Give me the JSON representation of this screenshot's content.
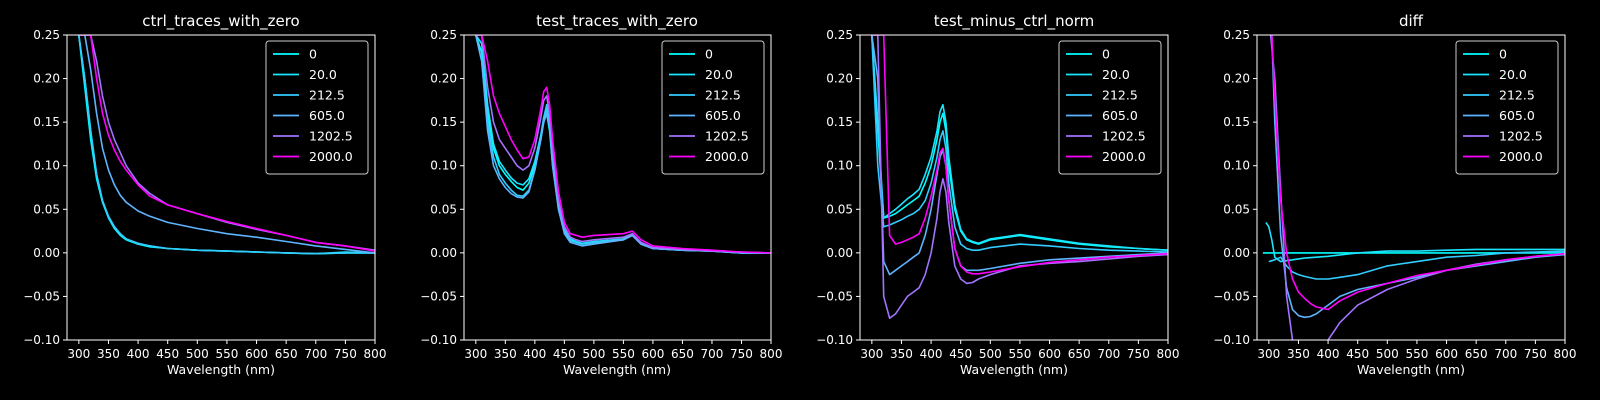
{
  "figure": {
    "background": "#000000",
    "foreground": "#ffffff"
  },
  "legend_labels": [
    "0",
    "20.0",
    "212.5",
    "605.0",
    "1202.5",
    "2000.0"
  ],
  "series_colors": [
    "#00ffff",
    "#1ae5ff",
    "#33ccff",
    "#5eb4ff",
    "#a173ff",
    "#ff00ff"
  ],
  "chart_data": [
    {
      "type": "line",
      "title": "ctrl_traces_with_zero",
      "xlabel": "Wavelength (nm)",
      "ylabel": "",
      "xlim": [
        280,
        800
      ],
      "ylim": [
        -0.1,
        0.25
      ],
      "xticks": [
        300,
        350,
        400,
        450,
        500,
        550,
        600,
        650,
        700,
        750,
        800
      ],
      "yticks": [
        -0.1,
        -0.05,
        0.0,
        0.05,
        0.1,
        0.15,
        0.2,
        0.25
      ],
      "ytick_labels": [
        "−0.10",
        "−0.05",
        "0.00",
        "0.05",
        "0.10",
        "0.15",
        "0.20",
        "0.25"
      ],
      "legend_position": "top-right",
      "x": [
        300,
        310,
        320,
        330,
        340,
        350,
        360,
        370,
        380,
        400,
        420,
        450,
        500,
        550,
        600,
        650,
        700,
        750,
        800
      ],
      "series": [
        {
          "name": "0",
          "values": [
            0.25,
            0.19,
            0.13,
            0.085,
            0.058,
            0.04,
            0.028,
            0.02,
            0.015,
            0.01,
            0.007,
            0.005,
            0.003,
            0.002,
            0.001,
            0.0,
            -0.001,
            0.0,
            0.0
          ]
        },
        {
          "name": "20.0",
          "values": [
            0.25,
            0.2,
            0.14,
            0.09,
            0.06,
            0.041,
            0.029,
            0.021,
            0.016,
            0.01,
            0.008,
            0.005,
            0.003,
            0.002,
            0.001,
            0.0,
            -0.001,
            0.001,
            0.0
          ]
        },
        {
          "name": "212.5",
          "values": [
            0.25,
            0.2,
            0.14,
            0.09,
            0.06,
            0.042,
            0.03,
            0.022,
            0.016,
            0.011,
            0.008,
            0.005,
            0.003,
            0.002,
            0.001,
            0.0,
            -0.001,
            0.0,
            0.0
          ]
        },
        {
          "name": "605.0",
          "values": [
            0.25,
            0.25,
            0.21,
            0.16,
            0.12,
            0.095,
            0.078,
            0.066,
            0.058,
            0.048,
            0.042,
            0.035,
            0.028,
            0.022,
            0.018,
            0.013,
            0.008,
            0.004,
            0.0
          ]
        },
        {
          "name": "1202.5",
          "values": [
            0.25,
            0.25,
            0.25,
            0.22,
            0.18,
            0.15,
            0.13,
            0.115,
            0.1,
            0.08,
            0.068,
            0.055,
            0.045,
            0.035,
            0.027,
            0.02,
            0.012,
            0.008,
            0.003
          ]
        },
        {
          "name": "2000.0",
          "values": [
            0.25,
            0.25,
            0.25,
            0.2,
            0.16,
            0.135,
            0.118,
            0.105,
            0.095,
            0.078,
            0.065,
            0.055,
            0.045,
            0.036,
            0.028,
            0.02,
            0.012,
            0.008,
            0.002
          ]
        }
      ]
    },
    {
      "type": "line",
      "title": "test_traces_with_zero",
      "xlabel": "Wavelength (nm)",
      "ylabel": "",
      "xlim": [
        280,
        800
      ],
      "ylim": [
        -0.1,
        0.25
      ],
      "xticks": [
        300,
        350,
        400,
        450,
        500,
        550,
        600,
        650,
        700,
        750,
        800
      ],
      "yticks": [
        -0.1,
        -0.05,
        0.0,
        0.05,
        0.1,
        0.15,
        0.2,
        0.25
      ],
      "ytick_labels": [
        "−0.10",
        "−0.05",
        "0.00",
        "0.05",
        "0.10",
        "0.15",
        "0.20",
        "0.25"
      ],
      "legend_position": "top-right",
      "x": [
        300,
        310,
        320,
        330,
        340,
        350,
        360,
        370,
        380,
        390,
        400,
        410,
        415,
        420,
        425,
        430,
        440,
        450,
        460,
        470,
        480,
        500,
        550,
        565,
        580,
        600,
        650,
        700,
        750,
        800
      ],
      "series": [
        {
          "name": "0",
          "values": [
            0.25,
            0.23,
            0.16,
            0.12,
            0.1,
            0.09,
            0.082,
            0.075,
            0.072,
            0.08,
            0.1,
            0.13,
            0.15,
            0.16,
            0.14,
            0.1,
            0.05,
            0.025,
            0.015,
            0.012,
            0.01,
            0.012,
            0.015,
            0.02,
            0.01,
            0.005,
            0.003,
            0.002,
            0.0,
            0.0
          ]
        },
        {
          "name": "20.0",
          "values": [
            0.25,
            0.24,
            0.17,
            0.125,
            0.105,
            0.095,
            0.086,
            0.08,
            0.078,
            0.085,
            0.105,
            0.135,
            0.155,
            0.165,
            0.145,
            0.105,
            0.055,
            0.028,
            0.016,
            0.013,
            0.011,
            0.013,
            0.016,
            0.021,
            0.011,
            0.005,
            0.003,
            0.002,
            0.0,
            0.0
          ]
        },
        {
          "name": "212.5",
          "values": [
            0.25,
            0.22,
            0.15,
            0.11,
            0.09,
            0.08,
            0.072,
            0.066,
            0.065,
            0.072,
            0.095,
            0.13,
            0.155,
            0.17,
            0.15,
            0.11,
            0.055,
            0.025,
            0.014,
            0.012,
            0.01,
            0.012,
            0.016,
            0.02,
            0.01,
            0.005,
            0.003,
            0.002,
            0.0,
            0.0
          ]
        },
        {
          "name": "605.0",
          "values": [
            0.25,
            0.22,
            0.14,
            0.1,
            0.085,
            0.075,
            0.068,
            0.064,
            0.063,
            0.07,
            0.095,
            0.13,
            0.15,
            0.16,
            0.145,
            0.1,
            0.05,
            0.022,
            0.012,
            0.01,
            0.008,
            0.01,
            0.015,
            0.02,
            0.01,
            0.005,
            0.003,
            0.002,
            0.0,
            0.0
          ]
        },
        {
          "name": "1202.5",
          "values": [
            0.25,
            0.25,
            0.19,
            0.15,
            0.13,
            0.12,
            0.11,
            0.1,
            0.095,
            0.1,
            0.12,
            0.155,
            0.175,
            0.18,
            0.16,
            0.12,
            0.06,
            0.03,
            0.018,
            0.015,
            0.013,
            0.015,
            0.018,
            0.022,
            0.012,
            0.006,
            0.004,
            0.002,
            0.001,
            0.0
          ]
        },
        {
          "name": "2000.0",
          "values": [
            0.25,
            0.25,
            0.22,
            0.18,
            0.16,
            0.145,
            0.13,
            0.118,
            0.108,
            0.11,
            0.13,
            0.165,
            0.185,
            0.19,
            0.17,
            0.13,
            0.07,
            0.035,
            0.022,
            0.02,
            0.018,
            0.02,
            0.022,
            0.025,
            0.015,
            0.008,
            0.005,
            0.003,
            0.001,
            0.0
          ]
        }
      ]
    },
    {
      "type": "line",
      "title": "test_minus_ctrl_norm",
      "xlabel": "Wavelength (nm)",
      "ylabel": "",
      "xlim": [
        280,
        800
      ],
      "ylim": [
        -0.1,
        0.25
      ],
      "xticks": [
        300,
        350,
        400,
        450,
        500,
        550,
        600,
        650,
        700,
        750,
        800
      ],
      "yticks": [
        -0.1,
        -0.05,
        0.0,
        0.05,
        0.1,
        0.15,
        0.2,
        0.25
      ],
      "ytick_labels": [
        "−0.10",
        "−0.05",
        "0.00",
        "0.05",
        "0.10",
        "0.15",
        "0.20",
        "0.25"
      ],
      "legend_position": "top-right",
      "x": [
        300,
        310,
        320,
        330,
        340,
        350,
        360,
        370,
        380,
        390,
        400,
        410,
        415,
        420,
        425,
        430,
        440,
        450,
        460,
        470,
        480,
        500,
        550,
        600,
        650,
        700,
        750,
        800
      ],
      "series": [
        {
          "name": "0",
          "values": [
            0.25,
            0.14,
            0.04,
            0.042,
            0.045,
            0.05,
            0.055,
            0.06,
            0.065,
            0.08,
            0.1,
            0.13,
            0.15,
            0.16,
            0.14,
            0.1,
            0.05,
            0.025,
            0.015,
            0.012,
            0.01,
            0.015,
            0.02,
            0.015,
            0.01,
            0.007,
            0.005,
            0.003
          ]
        },
        {
          "name": "20.0",
          "values": [
            0.25,
            0.15,
            0.04,
            0.045,
            0.05,
            0.056,
            0.062,
            0.067,
            0.073,
            0.09,
            0.11,
            0.14,
            0.162,
            0.17,
            0.15,
            0.11,
            0.055,
            0.027,
            0.016,
            0.013,
            0.011,
            0.016,
            0.021,
            0.016,
            0.011,
            0.008,
            0.005,
            0.003
          ]
        },
        {
          "name": "212.5",
          "values": [
            0.25,
            0.1,
            0.03,
            0.032,
            0.035,
            0.038,
            0.042,
            0.045,
            0.05,
            0.06,
            0.08,
            0.11,
            0.13,
            0.14,
            0.12,
            0.08,
            0.03,
            0.01,
            0.005,
            0.003,
            0.003,
            0.006,
            0.01,
            0.008,
            0.005,
            0.003,
            0.002,
            0.001
          ]
        },
        {
          "name": "605.0",
          "values": [
            0.25,
            0.2,
            -0.01,
            -0.025,
            -0.02,
            -0.015,
            -0.01,
            -0.005,
            0.0,
            0.02,
            0.05,
            0.09,
            0.11,
            0.118,
            0.1,
            0.06,
            0.005,
            -0.015,
            -0.02,
            -0.02,
            -0.02,
            -0.018,
            -0.012,
            -0.008,
            -0.006,
            -0.004,
            -0.002,
            0.0
          ]
        },
        {
          "name": "1202.5",
          "values": [
            0.25,
            0.25,
            -0.05,
            -0.075,
            -0.07,
            -0.06,
            -0.05,
            -0.045,
            -0.04,
            -0.025,
            0.0,
            0.04,
            0.07,
            0.085,
            0.07,
            0.035,
            -0.015,
            -0.03,
            -0.035,
            -0.034,
            -0.03,
            -0.025,
            -0.015,
            -0.012,
            -0.01,
            -0.007,
            -0.004,
            -0.002
          ]
        },
        {
          "name": "2000.0",
          "values": [
            0.25,
            0.25,
            0.25,
            0.02,
            0.01,
            0.012,
            0.015,
            0.018,
            0.022,
            0.04,
            0.065,
            0.095,
            0.115,
            0.12,
            0.1,
            0.06,
            0.005,
            -0.015,
            -0.022,
            -0.024,
            -0.024,
            -0.022,
            -0.016,
            -0.011,
            -0.008,
            -0.005,
            -0.003,
            -0.001
          ]
        }
      ]
    },
    {
      "type": "line",
      "title": "diff",
      "xlabel": "Wavelength (nm)",
      "ylabel": "",
      "xlim": [
        280,
        800
      ],
      "ylim": [
        -0.1,
        0.25
      ],
      "xticks": [
        300,
        350,
        400,
        450,
        500,
        550,
        600,
        650,
        700,
        750,
        800
      ],
      "yticks": [
        -0.1,
        -0.05,
        0.0,
        0.05,
        0.1,
        0.15,
        0.2,
        0.25
      ],
      "ytick_labels": [
        "−0.10",
        "−0.05",
        "0.00",
        "0.05",
        "0.10",
        "0.15",
        "0.20",
        "0.25"
      ],
      "legend_position": "top-right",
      "series": [
        {
          "name": "0",
          "x": [
            290,
            800
          ],
          "values": [
            0.0,
            0.0
          ]
        },
        {
          "name": "20.0",
          "x": [
            295,
            300,
            305,
            310,
            320,
            340,
            360,
            380,
            400,
            450,
            500,
            550,
            600,
            650,
            700,
            750,
            800
          ],
          "values": [
            0.035,
            0.03,
            0.015,
            -0.005,
            -0.01,
            -0.008,
            -0.006,
            -0.005,
            -0.004,
            0.0,
            0.002,
            0.002,
            0.003,
            0.004,
            0.004,
            0.004,
            0.004
          ]
        },
        {
          "name": "212.5",
          "x": [
            300,
            310,
            320,
            330,
            340,
            350,
            360,
            380,
            400,
            420,
            450,
            500,
            550,
            600,
            650,
            700,
            750,
            800
          ],
          "values": [
            -0.01,
            -0.008,
            -0.005,
            -0.015,
            -0.022,
            -0.025,
            -0.027,
            -0.03,
            -0.03,
            -0.028,
            -0.025,
            -0.015,
            -0.01,
            -0.005,
            -0.003,
            0.0,
            0.001,
            0.002
          ]
        },
        {
          "name": "605.0",
          "x": [
            305,
            310,
            320,
            330,
            340,
            350,
            360,
            370,
            380,
            400,
            420,
            450,
            500,
            550,
            600,
            650,
            700,
            750,
            800
          ],
          "values": [
            0.25,
            0.15,
            0.02,
            -0.04,
            -0.065,
            -0.072,
            -0.074,
            -0.073,
            -0.07,
            -0.06,
            -0.05,
            -0.042,
            -0.035,
            -0.028,
            -0.02,
            -0.015,
            -0.01,
            -0.005,
            -0.002
          ]
        },
        {
          "name": "1202.5",
          "x": [
            303,
            310,
            320,
            330,
            340,
            350,
            360,
            380,
            400,
            420,
            450,
            500,
            550,
            600,
            650,
            700,
            750,
            800
          ],
          "values": [
            0.25,
            0.2,
            0.07,
            -0.05,
            -0.1,
            -0.12,
            -0.13,
            -0.115,
            -0.1,
            -0.08,
            -0.06,
            -0.042,
            -0.03,
            -0.02,
            -0.013,
            -0.008,
            -0.004,
            -0.001
          ]
        },
        {
          "name": "2000.0",
          "x": [
            305,
            310,
            320,
            330,
            340,
            350,
            360,
            370,
            380,
            400,
            420,
            450,
            500,
            550,
            600,
            650,
            700,
            750,
            800
          ],
          "values": [
            0.25,
            0.18,
            0.06,
            0.0,
            -0.03,
            -0.045,
            -0.052,
            -0.058,
            -0.062,
            -0.065,
            -0.055,
            -0.045,
            -0.035,
            -0.026,
            -0.02,
            -0.014,
            -0.008,
            -0.004,
            -0.001
          ]
        }
      ]
    }
  ]
}
